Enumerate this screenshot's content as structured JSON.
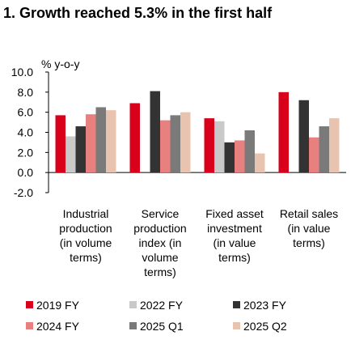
{
  "chart_data": {
    "type": "bar",
    "title": "1. Growth reached 5.3% in the first half",
    "unit_label": "% y-o-y",
    "ylim": [
      -2.0,
      10.0
    ],
    "yticks": [
      "10.0",
      "8.0",
      "6.0",
      "4.0",
      "2.0",
      "0.0",
      "-2.0"
    ],
    "ytick_values": [
      10,
      8,
      6,
      4,
      2,
      0,
      -2
    ],
    "categories": [
      [
        "Industrial",
        "production",
        "(in volume",
        "terms)"
      ],
      [
        "Service",
        "production",
        "index (in",
        "volume",
        "terms)"
      ],
      [
        "Fixed asset",
        "investment",
        "(in value",
        "terms)"
      ],
      [
        "Retail sales",
        "(in value",
        "terms)"
      ]
    ],
    "series": [
      {
        "name": "2019 FY",
        "color": "#d9001b",
        "values": [
          5.7,
          6.9,
          5.4,
          8.0
        ]
      },
      {
        "name": "2022 FY",
        "color": "#c9c9c9",
        "values": [
          3.6,
          0,
          5.1,
          0
        ]
      },
      {
        "name": "2023 FY",
        "color": "#333333",
        "values": [
          4.6,
          8.1,
          3.0,
          7.2
        ]
      },
      {
        "name": "2024 FY",
        "color": "#e88080",
        "values": [
          5.8,
          5.2,
          3.2,
          3.5
        ]
      },
      {
        "name": "2025 Q1",
        "color": "#7a7a7a",
        "values": [
          6.5,
          5.7,
          4.2,
          4.6
        ]
      },
      {
        "name": "2025 Q2",
        "color": "#e8c4b0",
        "values": [
          6.2,
          6.0,
          1.9,
          5.4
        ]
      }
    ],
    "grid": false,
    "legend_position": "bottom"
  }
}
